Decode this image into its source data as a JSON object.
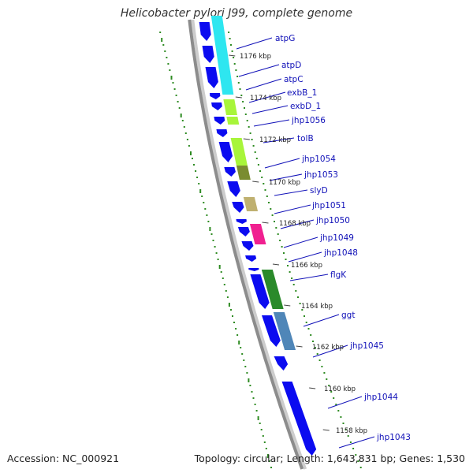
{
  "title": "Helicobacter pylori J99, complete genome",
  "accession_text": "Accession: NC_000921",
  "summary_text": "Topology: circular; Length: 1,643,831 bp; Genes: 1,530",
  "colors": {
    "backbone": "#8c8c8c",
    "cds": "#0b0bf0",
    "label": "#1010b8",
    "dot_track": "#2e8b22"
  },
  "tick_labels": [
    "1176 kbp",
    "1174 kbp",
    "1172 kbp",
    "1170 kbp",
    "1168 kbp",
    "1166 kbp",
    "1164 kbp",
    "1162 kbp",
    "1160 kbp",
    "1158 kbp"
  ],
  "gene_labels": [
    "atpG",
    "atpD",
    "atpC",
    "exbB_1",
    "exbD_1",
    "jhp1056",
    "tolB",
    "jhp1054",
    "jhp1053",
    "slyD",
    "jhp1051",
    "jhp1050",
    "jhp1049",
    "jhp1048",
    "flgK",
    "ggt",
    "jhp1045",
    "jhp1044",
    "jhp1043"
  ],
  "cog_colors": [
    "#2ee6f0",
    "#a8f53a",
    "#7a8c30",
    "#bfb070",
    "#f02090",
    "#2a8a2a",
    "#4f86b8"
  ]
}
